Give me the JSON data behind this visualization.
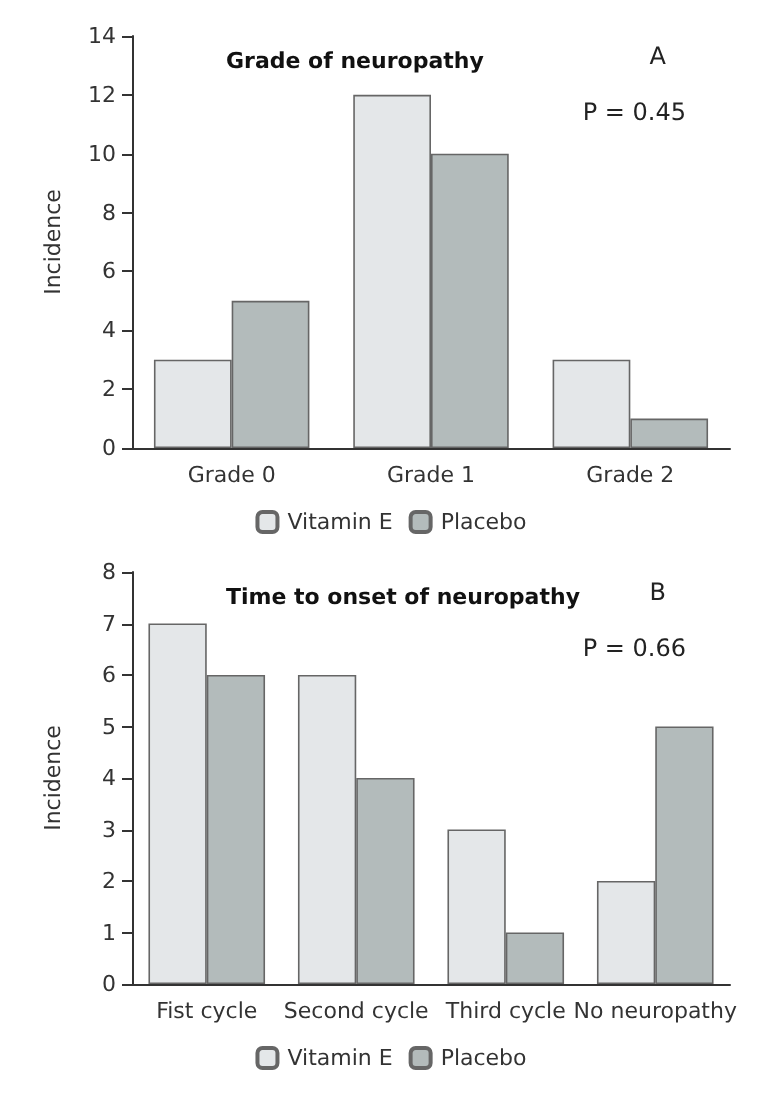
{
  "chart_data": [
    {
      "type": "bar",
      "title": "Grade of neuropathy",
      "ylabel": "Incidence",
      "annotations": [
        "A",
        "P = 0.45"
      ],
      "categories": [
        "Grade 0",
        "Grade 1",
        "Grade 2"
      ],
      "series": [
        {
          "name": "Vitamin E",
          "color": "#e4e7e9",
          "values": [
            3,
            12,
            3
          ]
        },
        {
          "name": "Placebo",
          "color": "#b3bbbb",
          "values": [
            5,
            10,
            1
          ]
        }
      ],
      "ylim": [
        0,
        14
      ],
      "yticks": [
        0,
        2,
        4,
        6,
        8,
        10,
        12,
        14
      ],
      "grid": false,
      "legend": "bottom"
    },
    {
      "type": "bar",
      "title": "Time to onset of neuropathy",
      "ylabel": "Incidence",
      "annotations": [
        "B",
        "P = 0.66"
      ],
      "categories": [
        "Fist cycle",
        "Second cycle",
        "Third cycle",
        "No neuropathy"
      ],
      "series": [
        {
          "name": "Vitamin E",
          "color": "#e4e7e9",
          "values": [
            7,
            6,
            3,
            2
          ]
        },
        {
          "name": "Placebo",
          "color": "#b3bbbb",
          "values": [
            6,
            4,
            1,
            5
          ]
        }
      ],
      "ylim": [
        0,
        8
      ],
      "yticks": [
        0,
        1,
        2,
        3,
        4,
        5,
        6,
        7,
        8
      ],
      "grid": false,
      "legend": "bottom"
    }
  ]
}
